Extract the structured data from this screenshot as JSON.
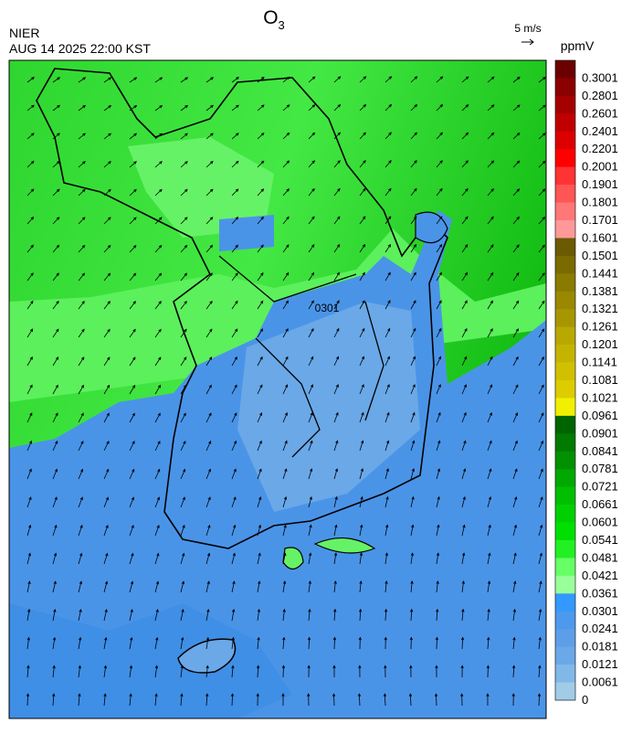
{
  "header": {
    "agency": "NIER",
    "timestamp": "AUG 14 2025 22:00 KST",
    "title_base": "O",
    "title_sub": "3"
  },
  "wind_scale": "5 m/s",
  "colorbar": {
    "unit": "ppmV",
    "levels": [
      0.3001,
      0.2801,
      0.2601,
      0.2401,
      0.2201,
      0.2001,
      0.1901,
      0.1801,
      0.1701,
      0.1601,
      0.1501,
      0.1441,
      0.1381,
      0.1321,
      0.1261,
      0.1201,
      0.1141,
      0.1081,
      0.1021,
      0.0961,
      0.0901,
      0.0841,
      0.0781,
      0.0721,
      0.0661,
      0.0601,
      0.0541,
      0.0481,
      0.0421,
      0.0361,
      0.0301,
      0.0241,
      0.0181,
      0.0121,
      0.0061,
      0
    ],
    "colors": [
      "#6b0000",
      "#8b0000",
      "#a50000",
      "#c00000",
      "#dc0000",
      "#ff0000",
      "#ff3333",
      "#ff5555",
      "#ff7777",
      "#ff9999",
      "#6b5a00",
      "#7a6a00",
      "#8a7a00",
      "#998800",
      "#a89600",
      "#b8a800",
      "#c4b400",
      "#d0c000",
      "#dccc00",
      "#f0f000",
      "#006400",
      "#007a00",
      "#009000",
      "#00a800",
      "#00bf00",
      "#00d000",
      "#00e000",
      "#22f022",
      "#66ff66",
      "#99ff99",
      "#3399ff",
      "#4d99ee",
      "#5c9ee8",
      "#6aa8e8",
      "#80b8e8",
      "#a0cce8"
    ]
  },
  "map": {
    "contour_label": "0301"
  }
}
